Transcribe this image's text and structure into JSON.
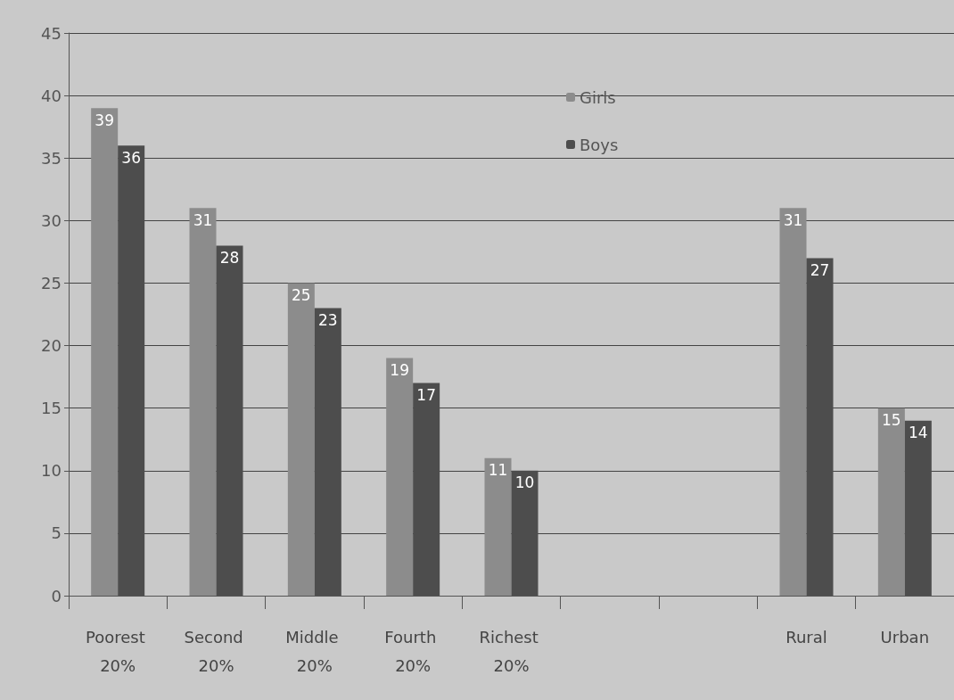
{
  "chart_data": {
    "type": "bar",
    "categories": [
      "Poorest 20%",
      "Second 20%",
      "Middle 20%",
      "Fourth 20%",
      "Richest 20%",
      null,
      null,
      "Rural",
      "Urban"
    ],
    "series": [
      {
        "name": "Girls",
        "color": "#8c8c8c",
        "values": [
          39,
          31,
          25,
          19,
          11,
          null,
          null,
          31,
          15
        ]
      },
      {
        "name": "Boys",
        "color": "#4d4d4d",
        "values": [
          36,
          28,
          23,
          17,
          10,
          null,
          null,
          27,
          14
        ]
      }
    ],
    "ylim": [
      0,
      45
    ],
    "yticks": [
      0,
      5,
      10,
      15,
      20,
      25,
      30,
      35,
      40,
      45
    ],
    "grid": "y",
    "legend": "top",
    "data_labels": true
  }
}
